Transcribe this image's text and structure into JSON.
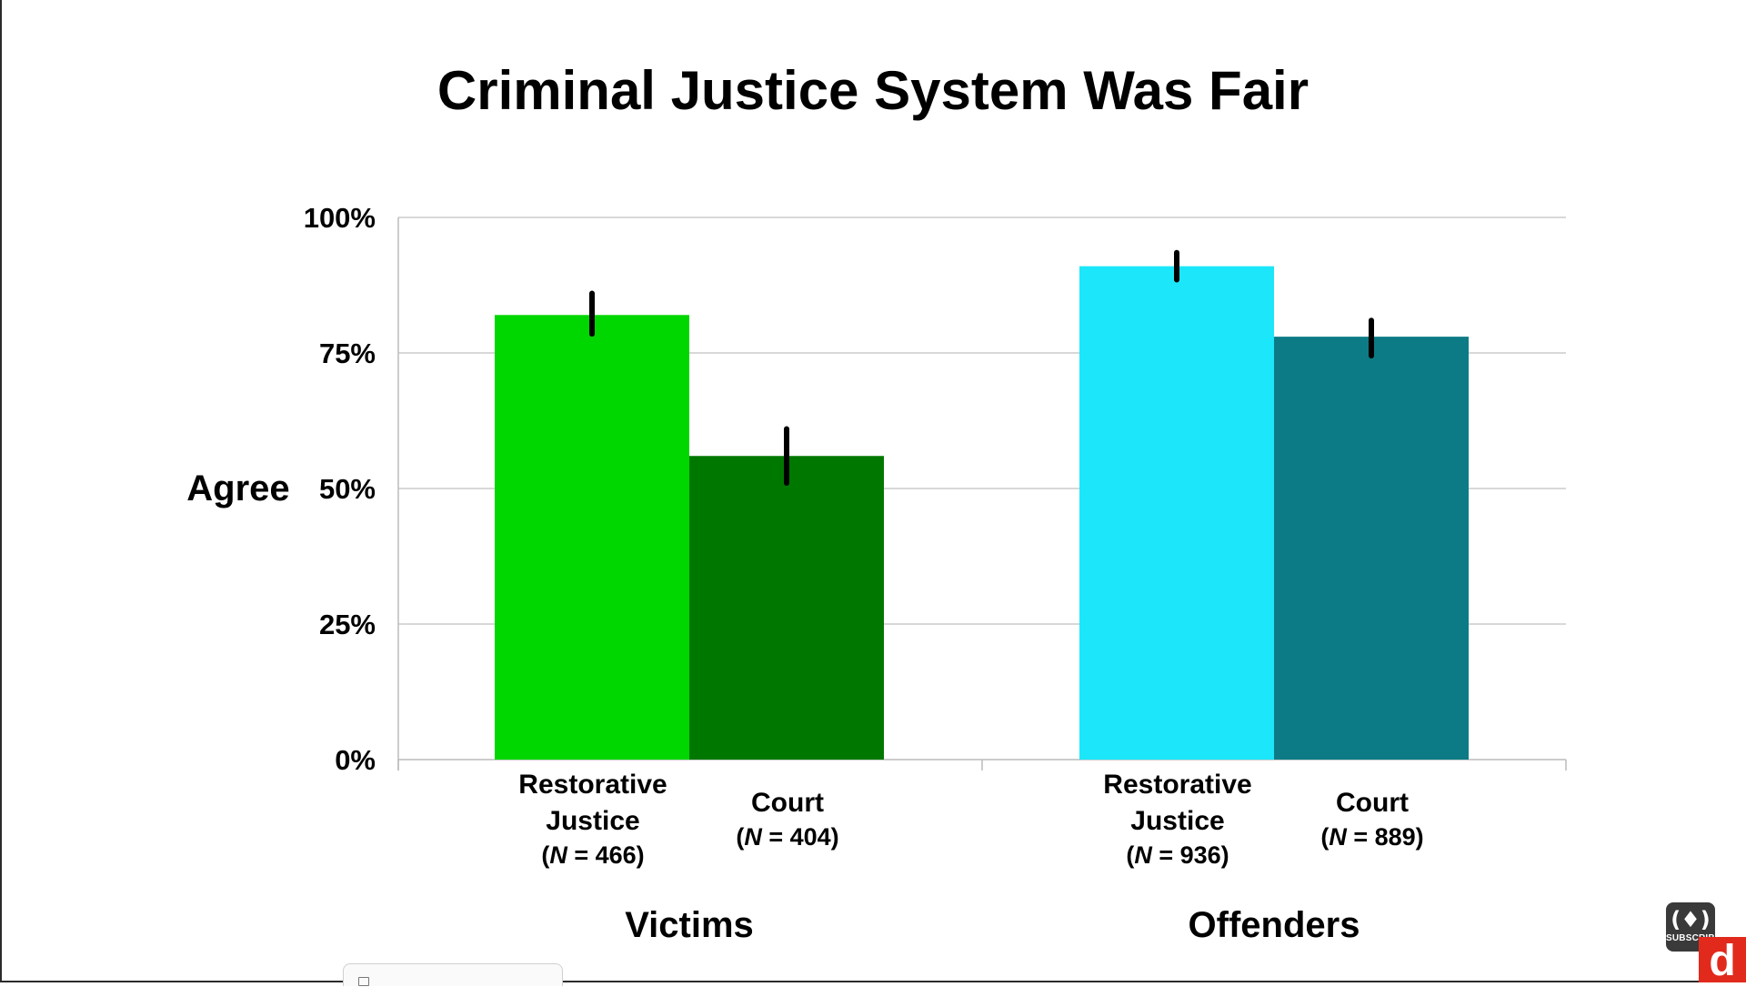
{
  "chart_data": {
    "type": "bar",
    "title": "Criminal Justice System Was Fair",
    "ylabel": "Agree",
    "xlabel": "",
    "ylim": [
      0,
      100
    ],
    "yticks": [
      0,
      25,
      50,
      75,
      100
    ],
    "ytick_labels": [
      "0%",
      "25%",
      "50%",
      "75%",
      "100%"
    ],
    "grid": true,
    "groups": [
      {
        "label": "Victims",
        "bars": [
          {
            "label_lines": [
              "Restorative",
              "Justice"
            ],
            "n_label": "(N = 466)",
            "n_prefix": "(",
            "n_italic": "N",
            "n_rest": " = 466)",
            "value": 82,
            "err_low": 78.5,
            "err_high": 86,
            "color": "#00d600"
          },
          {
            "label_lines": [
              "Court"
            ],
            "n_label": "(N = 404)",
            "n_prefix": "(",
            "n_italic": "N",
            "n_rest": " = 404)",
            "value": 56,
            "err_low": 51,
            "err_high": 61,
            "color": "#007800"
          }
        ]
      },
      {
        "label": "Offenders",
        "bars": [
          {
            "label_lines": [
              "Restorative",
              "Justice"
            ],
            "n_label": "(N = 936)",
            "n_prefix": "(",
            "n_italic": "N",
            "n_rest": " = 936)",
            "value": 91,
            "err_low": 88.5,
            "err_high": 93.5,
            "color": "#1ce6fa"
          },
          {
            "label_lines": [
              "Court"
            ],
            "n_label": "(N = 889)",
            "n_prefix": "(",
            "n_italic": "N",
            "n_rest": " = 889)",
            "value": 78,
            "err_low": 74.5,
            "err_high": 81,
            "color": "#0c7b86"
          }
        ]
      }
    ]
  },
  "badges": {
    "subscribe_icon": "flame-in-parens-icon",
    "subscribe_text": "SUBSCRIBE",
    "logo_letter": "d"
  }
}
